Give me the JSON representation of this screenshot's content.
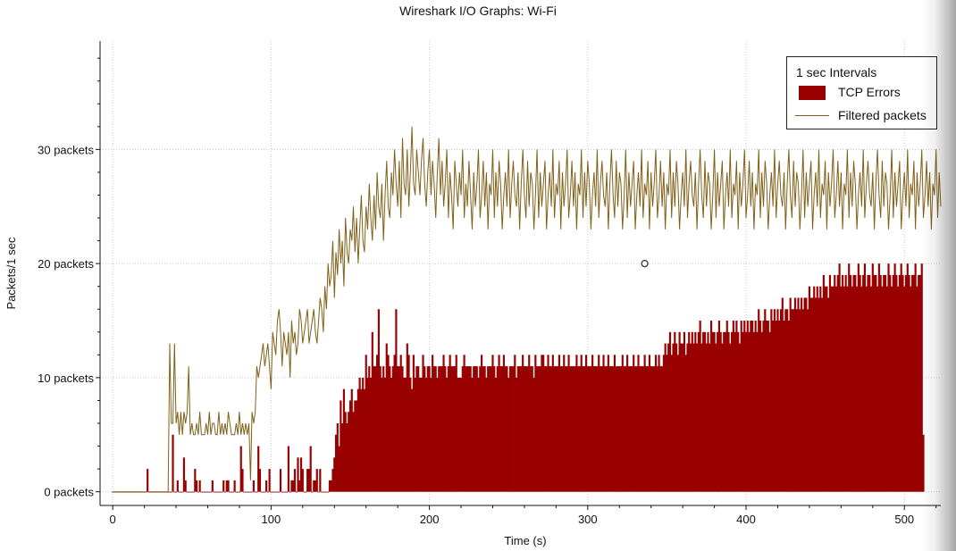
{
  "window": {
    "title": "Wireshark I/O Graphs: Wi-Fi"
  },
  "chart_data": {
    "type": "bar",
    "title": "Wireshark I/O Graphs: Wi-Fi",
    "xlabel": "Time (s)",
    "ylabel": "Packets/1 sec",
    "xlim": [
      -8,
      523
    ],
    "ylim": [
      -1.2,
      39.5
    ],
    "x_ticks": [
      0,
      100,
      200,
      300,
      400,
      500
    ],
    "y_ticks": [
      0,
      10,
      20,
      30
    ],
    "y_tick_labels": [
      "0 packets",
      "10 packets",
      "20 packets",
      "30 packets"
    ],
    "grid": true,
    "legend": {
      "position": "top-right",
      "title": "1 sec Intervals",
      "entries": [
        {
          "label": "TCP Errors",
          "style": "bar",
          "color": "#990000"
        },
        {
          "label": "Filtered packets",
          "style": "line",
          "color": "#806119"
        }
      ]
    },
    "x_start": 0,
    "x_step": 1,
    "series": [
      {
        "name": "TCP Errors",
        "style": "bar",
        "color": "#990000",
        "values": [
          0,
          0,
          0,
          0,
          0,
          0,
          0,
          0,
          0,
          0,
          0,
          0,
          0,
          0,
          0,
          0,
          0,
          0,
          0,
          0,
          0,
          0,
          2,
          0,
          0,
          0,
          0,
          0,
          0,
          0,
          0,
          0,
          0,
          0,
          0,
          0,
          0,
          0,
          5,
          0,
          0,
          1,
          0,
          0,
          0,
          3,
          1,
          0,
          0,
          0,
          0,
          0,
          2,
          1,
          0,
          1,
          0,
          0,
          0,
          0,
          0,
          0,
          0,
          1,
          0,
          0,
          0,
          0,
          0,
          0,
          1,
          0,
          1,
          1,
          0,
          0,
          0,
          1,
          0,
          0,
          0,
          4,
          2,
          0,
          0,
          0,
          0,
          0,
          0,
          1,
          0,
          0,
          4,
          2,
          0,
          0,
          0,
          1,
          0,
          2,
          0,
          0,
          0,
          0,
          0,
          0,
          2,
          0,
          0,
          0,
          0,
          4,
          0,
          1,
          1,
          2,
          0,
          3,
          1,
          3,
          2,
          0,
          0,
          2,
          2,
          4,
          0,
          1,
          1,
          2,
          0,
          2,
          0,
          0,
          0,
          0,
          0,
          1,
          1,
          2,
          3,
          5,
          6,
          4,
          8,
          6,
          9,
          7,
          6,
          7,
          8,
          9,
          7,
          8,
          8,
          9,
          10,
          9,
          10,
          9,
          12,
          10,
          11,
          10,
          14,
          11,
          11,
          12,
          16,
          11,
          10,
          11,
          10,
          13,
          12,
          11,
          10,
          11,
          12,
          16,
          11,
          11,
          12,
          11,
          10,
          10,
          13,
          12,
          10,
          9,
          12,
          10,
          11,
          11,
          10,
          10,
          12,
          11,
          10,
          11,
          11,
          10,
          12,
          11,
          11,
          10,
          11,
          11,
          11,
          12,
          11,
          10,
          11,
          12,
          11,
          11,
          11,
          12,
          10,
          10,
          10,
          11,
          12,
          11,
          11,
          11,
          11,
          10,
          11,
          11,
          11,
          10,
          11,
          12,
          11,
          11,
          10,
          11,
          11,
          11,
          12,
          11,
          10,
          11,
          12,
          11,
          11,
          12,
          11,
          11,
          10,
          11,
          11,
          11,
          12,
          10,
          11,
          11,
          11,
          12,
          11,
          11,
          11,
          12,
          11,
          11,
          10,
          12,
          11,
          11,
          11,
          12,
          12,
          11,
          11,
          12,
          11,
          11,
          12,
          11,
          11,
          11,
          12,
          11,
          11,
          12,
          11,
          11,
          12,
          11,
          11,
          11,
          11,
          12,
          11,
          11,
          12,
          11,
          11,
          12,
          11,
          11,
          11,
          12,
          11,
          11,
          11,
          12,
          11,
          11,
          12,
          11,
          11,
          12,
          11,
          11,
          11,
          12,
          11,
          11,
          11,
          11,
          12,
          11,
          11,
          12,
          11,
          11,
          11,
          12,
          11,
          11,
          12,
          11,
          11,
          11,
          12,
          11,
          11,
          12,
          11,
          11,
          11,
          12,
          11,
          12,
          11,
          11,
          12,
          13,
          12,
          13,
          14,
          12,
          13,
          14,
          13,
          12,
          14,
          13,
          13,
          14,
          12,
          13,
          14,
          13,
          14,
          13,
          14,
          13,
          14,
          15,
          13,
          14,
          14,
          13,
          14,
          13,
          15,
          14,
          14,
          13,
          14,
          15,
          14,
          13,
          14,
          14,
          15,
          14,
          13,
          14,
          15,
          14,
          15,
          14,
          13,
          15,
          14,
          15,
          14,
          15,
          14,
          15,
          15,
          14,
          15,
          14,
          16,
          15,
          14,
          15,
          16,
          15,
          15,
          14,
          16,
          15,
          16,
          15,
          16,
          15,
          16,
          17,
          15,
          16,
          16,
          15,
          17,
          16,
          16,
          17,
          16,
          17,
          16,
          17,
          16,
          17,
          17,
          16,
          18,
          17,
          17,
          18,
          17,
          18,
          17,
          18,
          17,
          19,
          18,
          18,
          17,
          19,
          18,
          18,
          19,
          18,
          19,
          20,
          18,
          19,
          18,
          19,
          18,
          20,
          19,
          18,
          19,
          19,
          18,
          20,
          19,
          18,
          19,
          20,
          18,
          19,
          19,
          18,
          20,
          19,
          19,
          18,
          20,
          19,
          18,
          19,
          19,
          18,
          20,
          19,
          18,
          19,
          20,
          19,
          18,
          19,
          20,
          19,
          18,
          19,
          20,
          19,
          18,
          19,
          19,
          20,
          18,
          19,
          19,
          20,
          5
        ]
      },
      {
        "name": "Filtered packets",
        "style": "line",
        "color": "#806119",
        "values": [
          0,
          0,
          0,
          0,
          0,
          0,
          0,
          0,
          0,
          0,
          0,
          0,
          0,
          0,
          0,
          0,
          0,
          0,
          0,
          0,
          0,
          0,
          0,
          0,
          0,
          0,
          0,
          0,
          0,
          0,
          0,
          0,
          0,
          0,
          0,
          0,
          13,
          6,
          6,
          13,
          6,
          7,
          5,
          7,
          5,
          7,
          6,
          7,
          11,
          5,
          6,
          5,
          5,
          6,
          5,
          7,
          5,
          5,
          5,
          6,
          5,
          7,
          5,
          6,
          6,
          5,
          5,
          7,
          5,
          6,
          5,
          6,
          5,
          7,
          6,
          5,
          5,
          5,
          6,
          5,
          7,
          5,
          6,
          5,
          6,
          5,
          6,
          1,
          7,
          6,
          7,
          11,
          10,
          11,
          12,
          13,
          11,
          12,
          13,
          11,
          9,
          14,
          13,
          12,
          15,
          16,
          14,
          11,
          14,
          13,
          12,
          14,
          10,
          15,
          13,
          14,
          12,
          13,
          16,
          15,
          13,
          14,
          15,
          16,
          13,
          14,
          15,
          16,
          14,
          13,
          15,
          17,
          16,
          14,
          18,
          16,
          20,
          18,
          19,
          22,
          17,
          21,
          19,
          23,
          20,
          22,
          18,
          24,
          21,
          20,
          23,
          22,
          25,
          21,
          24,
          20,
          23,
          26,
          22,
          21,
          25,
          23,
          27,
          24,
          22,
          26,
          23,
          28,
          25,
          24,
          27,
          22,
          26,
          29,
          25,
          24,
          28,
          26,
          30,
          27,
          25,
          29,
          24,
          31,
          27,
          26,
          30,
          25,
          28,
          32,
          27,
          26,
          30,
          28,
          26,
          29,
          31,
          27,
          25,
          28,
          30,
          26,
          29,
          27,
          24,
          28,
          31,
          26,
          29,
          25,
          27,
          30,
          24,
          28,
          26,
          23,
          29,
          27,
          25,
          28,
          26,
          30,
          24,
          27,
          25,
          29,
          26,
          23,
          28,
          25,
          27,
          30,
          24,
          26,
          29,
          25,
          28,
          23,
          27,
          26,
          30,
          24,
          28,
          25,
          29,
          27,
          23,
          26,
          28,
          25,
          30,
          24,
          27,
          29,
          26,
          25,
          28,
          23,
          27,
          30,
          26,
          24,
          29,
          25,
          28,
          27,
          23,
          26,
          30,
          24,
          28,
          25,
          27,
          29,
          23,
          26,
          28,
          25,
          30,
          24,
          27,
          26,
          29,
          23,
          28,
          25,
          27,
          30,
          24,
          26,
          29,
          25,
          28,
          23,
          27,
          26,
          30,
          24,
          28,
          25,
          29,
          27,
          23,
          26,
          28,
          25,
          30,
          24,
          27,
          29,
          26,
          25,
          28,
          23,
          27,
          30,
          26,
          24,
          29,
          25,
          28,
          27,
          23,
          26,
          30,
          24,
          28,
          25,
          27,
          29,
          23,
          26,
          28,
          25,
          30,
          24,
          27,
          26,
          29,
          23,
          28,
          25,
          27,
          30,
          24,
          26,
          29,
          25,
          28,
          23,
          27,
          26,
          30,
          24,
          28,
          25,
          29,
          27,
          23,
          26,
          28,
          25,
          30,
          24,
          27,
          29,
          26,
          25,
          28,
          23,
          27,
          30,
          26,
          24,
          29,
          25,
          28,
          27,
          23,
          26,
          30,
          24,
          28,
          25,
          27,
          29,
          23,
          26,
          28,
          25,
          30,
          24,
          27,
          26,
          29,
          23,
          28,
          25,
          27,
          30,
          24,
          26,
          29,
          25,
          28,
          23,
          27,
          26,
          30,
          24,
          28,
          25,
          29,
          27,
          23,
          26,
          28,
          25,
          30,
          24,
          27,
          29,
          26,
          25,
          28,
          23,
          27,
          30,
          26,
          24,
          29,
          25,
          28,
          27,
          23,
          26,
          30,
          24,
          28,
          25,
          27,
          29,
          23,
          26,
          28,
          25,
          30,
          24,
          27,
          26,
          29,
          23,
          28,
          25,
          27,
          30,
          24,
          26,
          29,
          25,
          28,
          23,
          27,
          26,
          30,
          24,
          28,
          25,
          29,
          27,
          23,
          26,
          28,
          25,
          30,
          24,
          27,
          29,
          26,
          25,
          28,
          23,
          27,
          30,
          26,
          24,
          29,
          25,
          28,
          27,
          23,
          26,
          30,
          24,
          28,
          25,
          27,
          29,
          23,
          26,
          28,
          25,
          30,
          24,
          27,
          26,
          29,
          23,
          28,
          25,
          27,
          30,
          24,
          26,
          29,
          25,
          28,
          23,
          27,
          26,
          30,
          24,
          28,
          25
        ]
      }
    ],
    "marker": {
      "series": "Filtered packets",
      "x": 336,
      "y": 20,
      "shape": "circle"
    }
  }
}
